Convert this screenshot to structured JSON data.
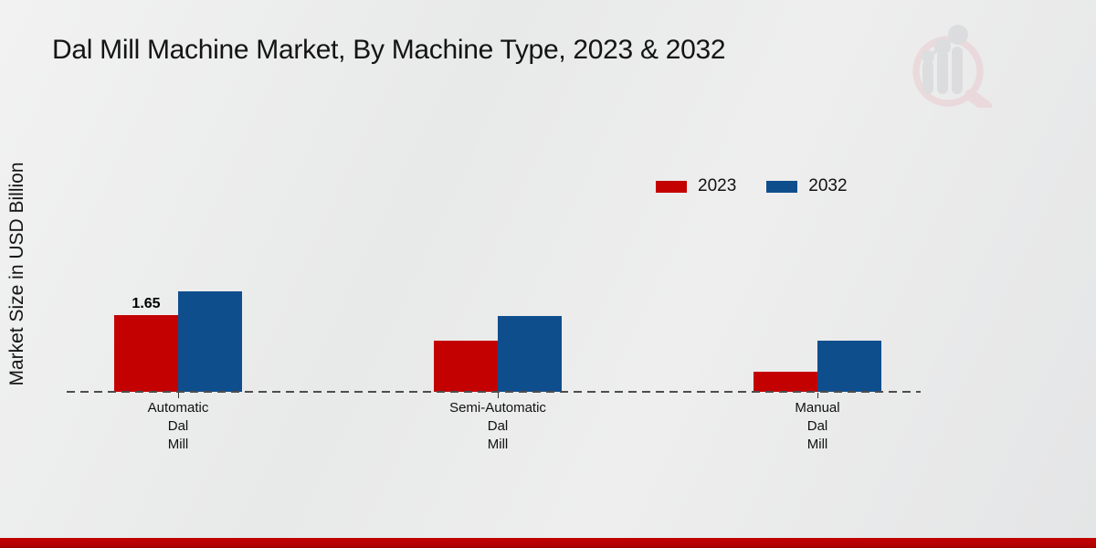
{
  "page": {
    "title": "Dal Mill Machine Market, By Machine Type, 2023 & 2032",
    "y_axis_label": "Market Size in USD Billion"
  },
  "legend": {
    "position": "top-right",
    "items": [
      {
        "label": "2023",
        "color": "#c40101"
      },
      {
        "label": "2032",
        "color": "#0f4e8d"
      }
    ]
  },
  "chart_data": {
    "type": "bar",
    "title": "Dal Mill Machine Market, By Machine Type, 2023 & 2032",
    "ylabel": "Market Size in USD Billion",
    "xlabel": "",
    "categories": [
      "Automatic Dal Mill",
      "Semi-Automatic Dal Mill",
      "Manual Dal Mill"
    ],
    "category_lines": [
      [
        "Automatic",
        "Dal",
        "Mill"
      ],
      [
        "Semi-Automatic",
        "Dal",
        "Mill"
      ],
      [
        "Manual",
        "Dal",
        "Mill"
      ]
    ],
    "series": [
      {
        "name": "2023",
        "color": "#c40101",
        "values": [
          1.65,
          1.1,
          0.43
        ],
        "data_labels": [
          "1.65",
          "",
          ""
        ]
      },
      {
        "name": "2032",
        "color": "#0f4e8d",
        "values": [
          2.16,
          1.63,
          1.1
        ],
        "data_labels": [
          "",
          "",
          ""
        ]
      }
    ],
    "ylim": [
      0,
      2.5
    ],
    "grid": false,
    "legend_position": "top-right",
    "baseline_style": "dashed",
    "units": "USD Billion"
  },
  "watermark": {
    "icon": "market-research-future-logo"
  },
  "footer": {
    "accent_color": "#b40101"
  }
}
